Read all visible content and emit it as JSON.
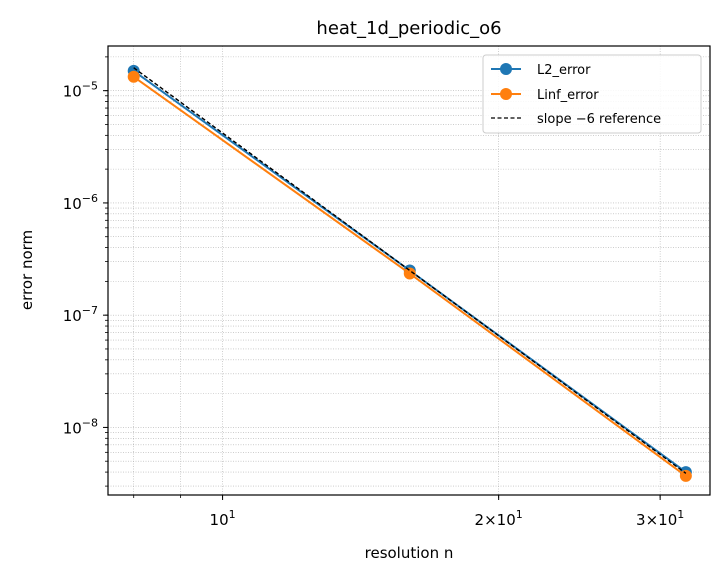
{
  "chart_data": {
    "type": "line",
    "title": "heat_1d_periodic_o6",
    "xlabel": "resolution n",
    "ylabel": "error norm",
    "xscale": "log",
    "yscale": "log",
    "xlim": [
      7.5,
      34
    ],
    "ylim": [
      2.5e-09,
      2.5e-05
    ],
    "grid": true,
    "legend_position": "top-right",
    "x": [
      8,
      16,
      32
    ],
    "series": [
      {
        "name": "L2_error",
        "values": [
          1.5e-05,
          2.5e-07,
          4e-09
        ],
        "color": "#1f77b4",
        "style": "solid",
        "marker": "circle"
      },
      {
        "name": "Linf_error",
        "values": [
          1.33e-05,
          2.35e-07,
          3.7e-09
        ],
        "color": "#ff7f0e",
        "style": "solid",
        "marker": "circle"
      },
      {
        "name": "slope −6 reference",
        "values": [
          1.6e-05,
          2.5e-07,
          3.9e-09
        ],
        "color": "#000000",
        "style": "dashed",
        "marker": "none"
      }
    ],
    "x_ticks": [
      {
        "value": 10,
        "base": "10",
        "exp": "1",
        "coef": ""
      },
      {
        "value": 20,
        "base": "10",
        "exp": "1",
        "coef": "2×"
      },
      {
        "value": 30,
        "base": "10",
        "exp": "1",
        "coef": "3×"
      }
    ],
    "y_ticks": [
      {
        "value": 1e-05,
        "base": "10",
        "exp": "−5"
      },
      {
        "value": 1e-06,
        "base": "10",
        "exp": "−6"
      },
      {
        "value": 1e-07,
        "base": "10",
        "exp": "−7"
      },
      {
        "value": 1e-08,
        "base": "10",
        "exp": "−8"
      }
    ]
  }
}
